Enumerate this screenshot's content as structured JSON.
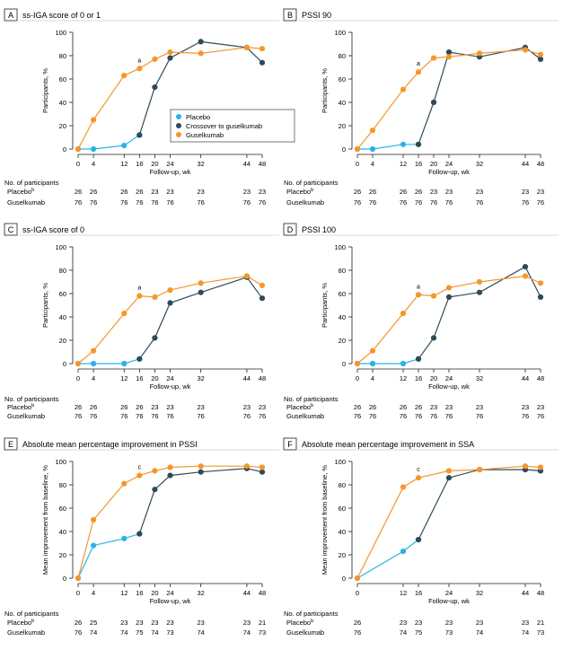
{
  "colors": {
    "placebo": "#2ab3e7",
    "crossover": "#2e4a57",
    "guselkumab": "#f5962b",
    "axis": "#231f20",
    "panel_border": "#cccccc",
    "legend_border": "#555555"
  },
  "nparticipants_title": "No. of participants",
  "xlabel": "Follow-up, wk",
  "legend": {
    "placebo": "Placebo",
    "crossover": "Crossover to guselkumab",
    "guselkumab": "Guselkumab"
  },
  "chart_data": [
    {
      "panel": "A",
      "title": "ss-IGA score of 0 or 1",
      "type": "line",
      "ylabel": "Participants, %",
      "xlabel": "Follow-up, wk",
      "ylim": [
        0,
        100
      ],
      "yticks": [
        0,
        20,
        40,
        60,
        80,
        100
      ],
      "xticks": [
        0,
        4,
        12,
        16,
        20,
        24,
        32,
        44,
        48
      ],
      "annotation": {
        "text": "a",
        "x": 16
      },
      "series": [
        {
          "name": "Placebo",
          "color_key": "placebo",
          "x": [
            0,
            4,
            12,
            16
          ],
          "values": [
            0,
            0,
            3,
            12
          ]
        },
        {
          "name": "Crossover to guselkumab",
          "color_key": "crossover",
          "x": [
            16,
            20,
            24,
            32,
            44,
            48
          ],
          "values": [
            12,
            53,
            78,
            92,
            87,
            74
          ]
        },
        {
          "name": "Guselkumab",
          "color_key": "guselkumab",
          "x": [
            0,
            4,
            12,
            16,
            20,
            24,
            32,
            44,
            48
          ],
          "values": [
            0,
            25,
            63,
            69,
            77,
            83,
            82,
            87,
            86
          ]
        }
      ],
      "table": [
        {
          "label": "Placebo",
          "sup": "b",
          "x": [
            0,
            4,
            12,
            16,
            20,
            24,
            32,
            44,
            48
          ],
          "values": [
            "26",
            "26",
            "26",
            "26",
            "23",
            "23",
            "23",
            "23",
            "23"
          ]
        },
        {
          "label": "Guselkumab",
          "sup": "",
          "x": [
            0,
            4,
            12,
            16,
            20,
            24,
            32,
            44,
            48
          ],
          "values": [
            "76",
            "76",
            "76",
            "76",
            "76",
            "76",
            "76",
            "76",
            "76"
          ]
        }
      ]
    },
    {
      "panel": "B",
      "title": "PSSI 90",
      "type": "line",
      "ylabel": "Participants, %",
      "xlabel": "Follow-up, wk",
      "ylim": [
        0,
        100
      ],
      "yticks": [
        0,
        20,
        40,
        60,
        80,
        100
      ],
      "xticks": [
        0,
        4,
        12,
        16,
        20,
        24,
        32,
        44,
        48
      ],
      "annotation": {
        "text": "a",
        "x": 16
      },
      "series": [
        {
          "name": "Placebo",
          "color_key": "placebo",
          "x": [
            0,
            4,
            12,
            16
          ],
          "values": [
            0,
            0,
            4,
            4
          ]
        },
        {
          "name": "Crossover to guselkumab",
          "color_key": "crossover",
          "x": [
            16,
            20,
            24,
            32,
            44,
            48
          ],
          "values": [
            4,
            40,
            83,
            79,
            87,
            77
          ]
        },
        {
          "name": "Guselkumab",
          "color_key": "guselkumab",
          "x": [
            0,
            4,
            12,
            16,
            20,
            24,
            32,
            44,
            48
          ],
          "values": [
            0,
            16,
            51,
            66,
            78,
            79,
            82,
            85,
            81
          ]
        }
      ],
      "table": [
        {
          "label": "Placebo",
          "sup": "b",
          "x": [
            0,
            4,
            12,
            16,
            20,
            24,
            32,
            44,
            48
          ],
          "values": [
            "26",
            "26",
            "26",
            "26",
            "23",
            "23",
            "23",
            "23",
            "23"
          ]
        },
        {
          "label": "Guselkumab",
          "sup": "",
          "x": [
            0,
            4,
            12,
            16,
            20,
            24,
            32,
            44,
            48
          ],
          "values": [
            "76",
            "76",
            "76",
            "76",
            "76",
            "76",
            "76",
            "76",
            "76"
          ]
        }
      ]
    },
    {
      "panel": "C",
      "title": "ss-IGA score of 0",
      "type": "line",
      "ylabel": "Participants, %",
      "xlabel": "Follow-up, wk",
      "ylim": [
        0,
        100
      ],
      "yticks": [
        0,
        20,
        40,
        60,
        80,
        100
      ],
      "xticks": [
        0,
        4,
        12,
        16,
        20,
        24,
        32,
        44,
        48
      ],
      "annotation": {
        "text": "a",
        "x": 16
      },
      "series": [
        {
          "name": "Placebo",
          "color_key": "placebo",
          "x": [
            0,
            4,
            12,
            16
          ],
          "values": [
            0,
            0,
            0,
            4
          ]
        },
        {
          "name": "Crossover to guselkumab",
          "color_key": "crossover",
          "x": [
            16,
            20,
            24,
            32,
            44,
            48
          ],
          "values": [
            4,
            22,
            52,
            61,
            74,
            56
          ]
        },
        {
          "name": "Guselkumab",
          "color_key": "guselkumab",
          "x": [
            0,
            4,
            12,
            16,
            20,
            24,
            32,
            44,
            48
          ],
          "values": [
            0,
            11,
            43,
            58,
            57,
            63,
            69,
            75,
            67
          ]
        }
      ],
      "table": [
        {
          "label": "Placebo",
          "sup": "b",
          "x": [
            0,
            4,
            12,
            16,
            20,
            24,
            32,
            44,
            48
          ],
          "values": [
            "26",
            "26",
            "26",
            "26",
            "23",
            "23",
            "23",
            "23",
            "23"
          ]
        },
        {
          "label": "Guselkumab",
          "sup": "",
          "x": [
            0,
            4,
            12,
            16,
            20,
            24,
            32,
            44,
            48
          ],
          "values": [
            "76",
            "76",
            "76",
            "76",
            "76",
            "76",
            "76",
            "76",
            "76"
          ]
        }
      ]
    },
    {
      "panel": "D",
      "title": "PSSI 100",
      "type": "line",
      "ylabel": "Participants, %",
      "xlabel": "Follow-up, wk",
      "ylim": [
        0,
        100
      ],
      "yticks": [
        0,
        20,
        40,
        60,
        80,
        100
      ],
      "xticks": [
        0,
        4,
        12,
        16,
        20,
        24,
        32,
        44,
        48
      ],
      "annotation": {
        "text": "a",
        "x": 16
      },
      "series": [
        {
          "name": "Placebo",
          "color_key": "placebo",
          "x": [
            0,
            4,
            12,
            16
          ],
          "values": [
            0,
            0,
            0,
            4
          ]
        },
        {
          "name": "Crossover to guselkumab",
          "color_key": "crossover",
          "x": [
            16,
            20,
            24,
            32,
            44,
            48
          ],
          "values": [
            4,
            22,
            57,
            61,
            83,
            57
          ]
        },
        {
          "name": "Guselkumab",
          "color_key": "guselkumab",
          "x": [
            0,
            4,
            12,
            16,
            20,
            24,
            32,
            44,
            48
          ],
          "values": [
            0,
            11,
            43,
            59,
            58,
            65,
            70,
            75,
            69
          ]
        }
      ],
      "table": [
        {
          "label": "Placebo",
          "sup": "b",
          "x": [
            0,
            4,
            12,
            16,
            20,
            24,
            32,
            44,
            48
          ],
          "values": [
            "26",
            "26",
            "26",
            "26",
            "23",
            "23",
            "23",
            "23",
            "23"
          ]
        },
        {
          "label": "Guselkumab",
          "sup": "",
          "x": [
            0,
            4,
            12,
            16,
            20,
            24,
            32,
            44,
            48
          ],
          "values": [
            "76",
            "76",
            "76",
            "76",
            "76",
            "76",
            "76",
            "76",
            "76"
          ]
        }
      ]
    },
    {
      "panel": "E",
      "title": "Absolute mean percentage improvement in PSSI",
      "type": "line",
      "ylabel": "Mean improvement from baseline, %",
      "xlabel": "Follow-up, wk",
      "ylim": [
        0,
        100
      ],
      "yticks": [
        0,
        20,
        40,
        60,
        80,
        100
      ],
      "xticks": [
        0,
        4,
        12,
        16,
        20,
        24,
        32,
        44,
        48
      ],
      "annotation": {
        "text": "c",
        "x": 16
      },
      "series": [
        {
          "name": "Placebo",
          "color_key": "placebo",
          "x": [
            0,
            4,
            12,
            16
          ],
          "values": [
            0,
            28,
            34,
            38
          ]
        },
        {
          "name": "Crossover to guselkumab",
          "color_key": "crossover",
          "x": [
            16,
            20,
            24,
            32,
            44,
            48
          ],
          "values": [
            38,
            76,
            88,
            91,
            94,
            91
          ]
        },
        {
          "name": "Guselkumab",
          "color_key": "guselkumab",
          "x": [
            0,
            4,
            12,
            16,
            20,
            24,
            32,
            44,
            48
          ],
          "values": [
            0,
            50,
            81,
            88,
            92,
            95,
            96,
            96,
            95
          ]
        }
      ],
      "table": [
        {
          "label": "Placebo",
          "sup": "b",
          "x": [
            0,
            4,
            12,
            16,
            20,
            24,
            32,
            44,
            48
          ],
          "values": [
            "26",
            "25",
            "23",
            "23",
            "23",
            "23",
            "23",
            "23",
            "21"
          ]
        },
        {
          "label": "Guselkumab",
          "sup": "",
          "x": [
            0,
            4,
            12,
            16,
            20,
            24,
            32,
            44,
            48
          ],
          "values": [
            "76",
            "74",
            "74",
            "75",
            "74",
            "73",
            "74",
            "74",
            "73"
          ]
        }
      ]
    },
    {
      "panel": "F",
      "title": "Absolute mean percentage improvement in SSA",
      "type": "line",
      "ylabel": "Mean improvement from baseline, %",
      "xlabel": "Follow-up, wk",
      "ylim": [
        0,
        100
      ],
      "yticks": [
        0,
        20,
        40,
        60,
        80,
        100
      ],
      "xticks": [
        0,
        12,
        16,
        24,
        32,
        44,
        48
      ],
      "annotation": {
        "text": "c",
        "x": 16
      },
      "series": [
        {
          "name": "Placebo",
          "color_key": "placebo",
          "x": [
            0,
            12,
            16
          ],
          "values": [
            0,
            23,
            33
          ]
        },
        {
          "name": "Crossover to guselkumab",
          "color_key": "crossover",
          "x": [
            16,
            24,
            32,
            44,
            48
          ],
          "values": [
            33,
            86,
            93,
            93,
            92
          ]
        },
        {
          "name": "Guselkumab",
          "color_key": "guselkumab",
          "x": [
            0,
            12,
            16,
            24,
            32,
            44,
            48
          ],
          "values": [
            0,
            78,
            86,
            92,
            93,
            96,
            95
          ]
        }
      ],
      "table": [
        {
          "label": "Placebo",
          "sup": "b",
          "x": [
            0,
            12,
            16,
            24,
            32,
            44,
            48
          ],
          "values": [
            "26",
            "23",
            "23",
            "23",
            "23",
            "23",
            "21"
          ]
        },
        {
          "label": "Guselkumab",
          "sup": "",
          "x": [
            0,
            12,
            16,
            24,
            32,
            44,
            48
          ],
          "values": [
            "76",
            "74",
            "75",
            "73",
            "74",
            "74",
            "73"
          ]
        }
      ]
    }
  ]
}
